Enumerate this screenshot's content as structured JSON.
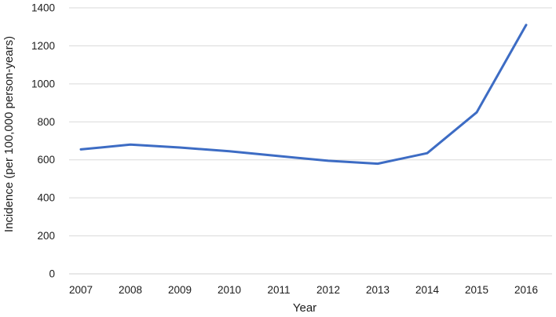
{
  "chart_data": {
    "type": "line",
    "title": "",
    "xlabel": "Year",
    "ylabel": "Incidence (per 100,000 person-years)",
    "categories": [
      "2007",
      "2008",
      "2009",
      "2010",
      "2011",
      "2012",
      "2013",
      "2014",
      "2015",
      "2016"
    ],
    "series": [
      {
        "name": "Incidence",
        "values": [
          655,
          680,
          665,
          645,
          620,
          595,
          580,
          635,
          850,
          1310
        ]
      }
    ],
    "ylim": [
      0,
      1400
    ],
    "yticks": [
      0,
      200,
      400,
      600,
      800,
      1000,
      1200,
      1400
    ],
    "grid": "horizontal",
    "legend_position": "none",
    "colors": {
      "line": "#3d6cc4",
      "gridline": "#d9d9d9",
      "axis_line": "#d0d0d0",
      "text": "#1c1c1c",
      "background": "#ffffff"
    }
  }
}
